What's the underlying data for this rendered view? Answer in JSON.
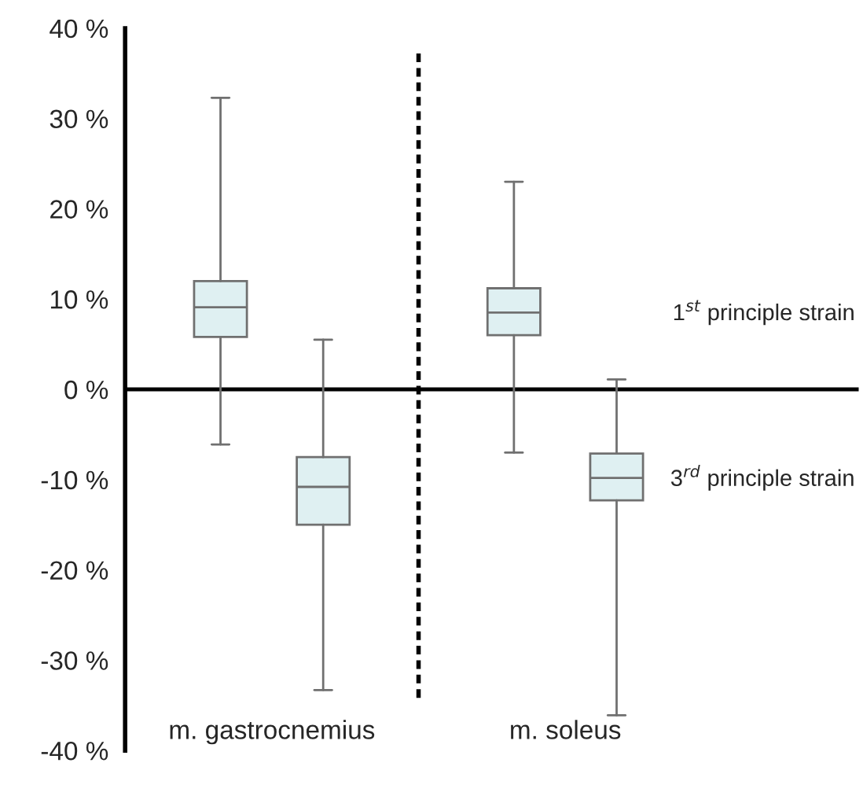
{
  "chart_data": {
    "type": "box",
    "categories": [
      "m. gastrocnemius",
      "m. soleus"
    ],
    "series": [
      {
        "name": "1$^{st}$ principle strain",
        "color": "#dff0f2",
        "boxes": [
          {
            "low": -6.1,
            "q1": 5.8,
            "median": 9.1,
            "q3": 12.0,
            "high": 32.3
          },
          {
            "low": -7.0,
            "q1": 6.0,
            "median": 8.5,
            "q3": 11.2,
            "high": 23.0
          }
        ]
      },
      {
        "name": "3$^{rd}$ principle strain",
        "color": "#dff0f2",
        "boxes": [
          {
            "low": -33.3,
            "q1": -15.0,
            "median": -10.8,
            "q3": -7.5,
            "high": 5.5
          },
          {
            "low": -36.1,
            "q1": -12.3,
            "median": -9.8,
            "q3": -7.1,
            "high": 1.1
          }
        ]
      }
    ],
    "ylim": [
      -40,
      40
    ],
    "yticks": [
      {
        "value": 40,
        "label": "40 %"
      },
      {
        "value": 30,
        "label": "30 %"
      },
      {
        "value": 20,
        "label": "20 %"
      },
      {
        "value": 10,
        "label": "10 %"
      },
      {
        "value": 0,
        "label": "0 %"
      },
      {
        "value": -10,
        "label": "-10 %"
      },
      {
        "value": -20,
        "label": "-20 %"
      },
      {
        "value": -30,
        "label": "-30 %"
      },
      {
        "value": -40,
        "label": "-40 %"
      }
    ],
    "ref_lines": [
      {
        "axis": "y",
        "value": 0,
        "label": null,
        "color": "#000000",
        "line_style": "solid"
      }
    ],
    "grid": false,
    "legend": false
  }
}
